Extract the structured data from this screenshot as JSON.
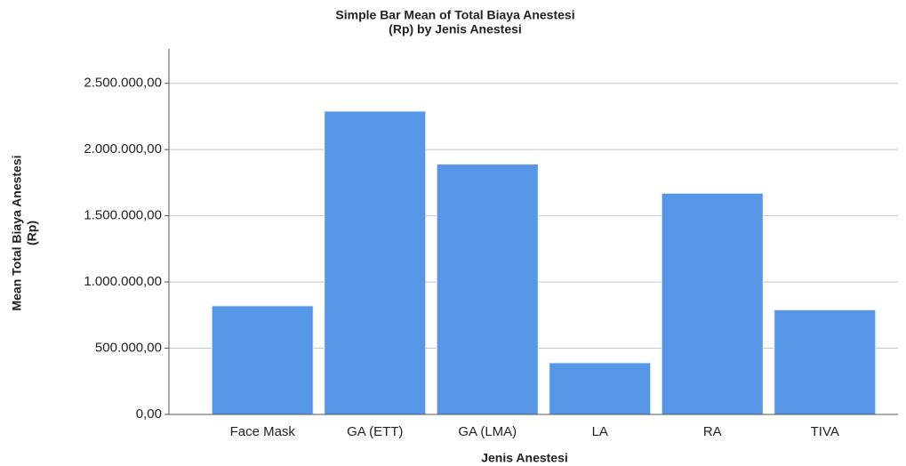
{
  "chart_data": {
    "type": "bar",
    "title": [
      "Simple Bar Mean of Total Biaya Anestesi",
      "(Rp) by Jenis Anestesi"
    ],
    "xlabel": "Jenis Anestesi",
    "ylabel": [
      "Mean Total Biaya Anestesi",
      "(Rp)"
    ],
    "categories": [
      "Face Mask",
      "GA (ETT)",
      "GA (LMA)",
      "LA",
      "RA",
      "TIVA"
    ],
    "values": [
      820000,
      2290000,
      1890000,
      390000,
      1670000,
      790000
    ],
    "color": "#5596e6",
    "ylim": [
      0,
      2760000
    ],
    "yticks": [
      {
        "value": 0,
        "label": "0,00"
      },
      {
        "value": 500000,
        "label": "500.000,00"
      },
      {
        "value": 1000000,
        "label": "1.000.000,00"
      },
      {
        "value": 1500000,
        "label": "1.500.000,00"
      },
      {
        "value": 2000000,
        "label": "2.000.000,00"
      },
      {
        "value": 2500000,
        "label": "2.500.000,00"
      }
    ],
    "grid": true
  }
}
